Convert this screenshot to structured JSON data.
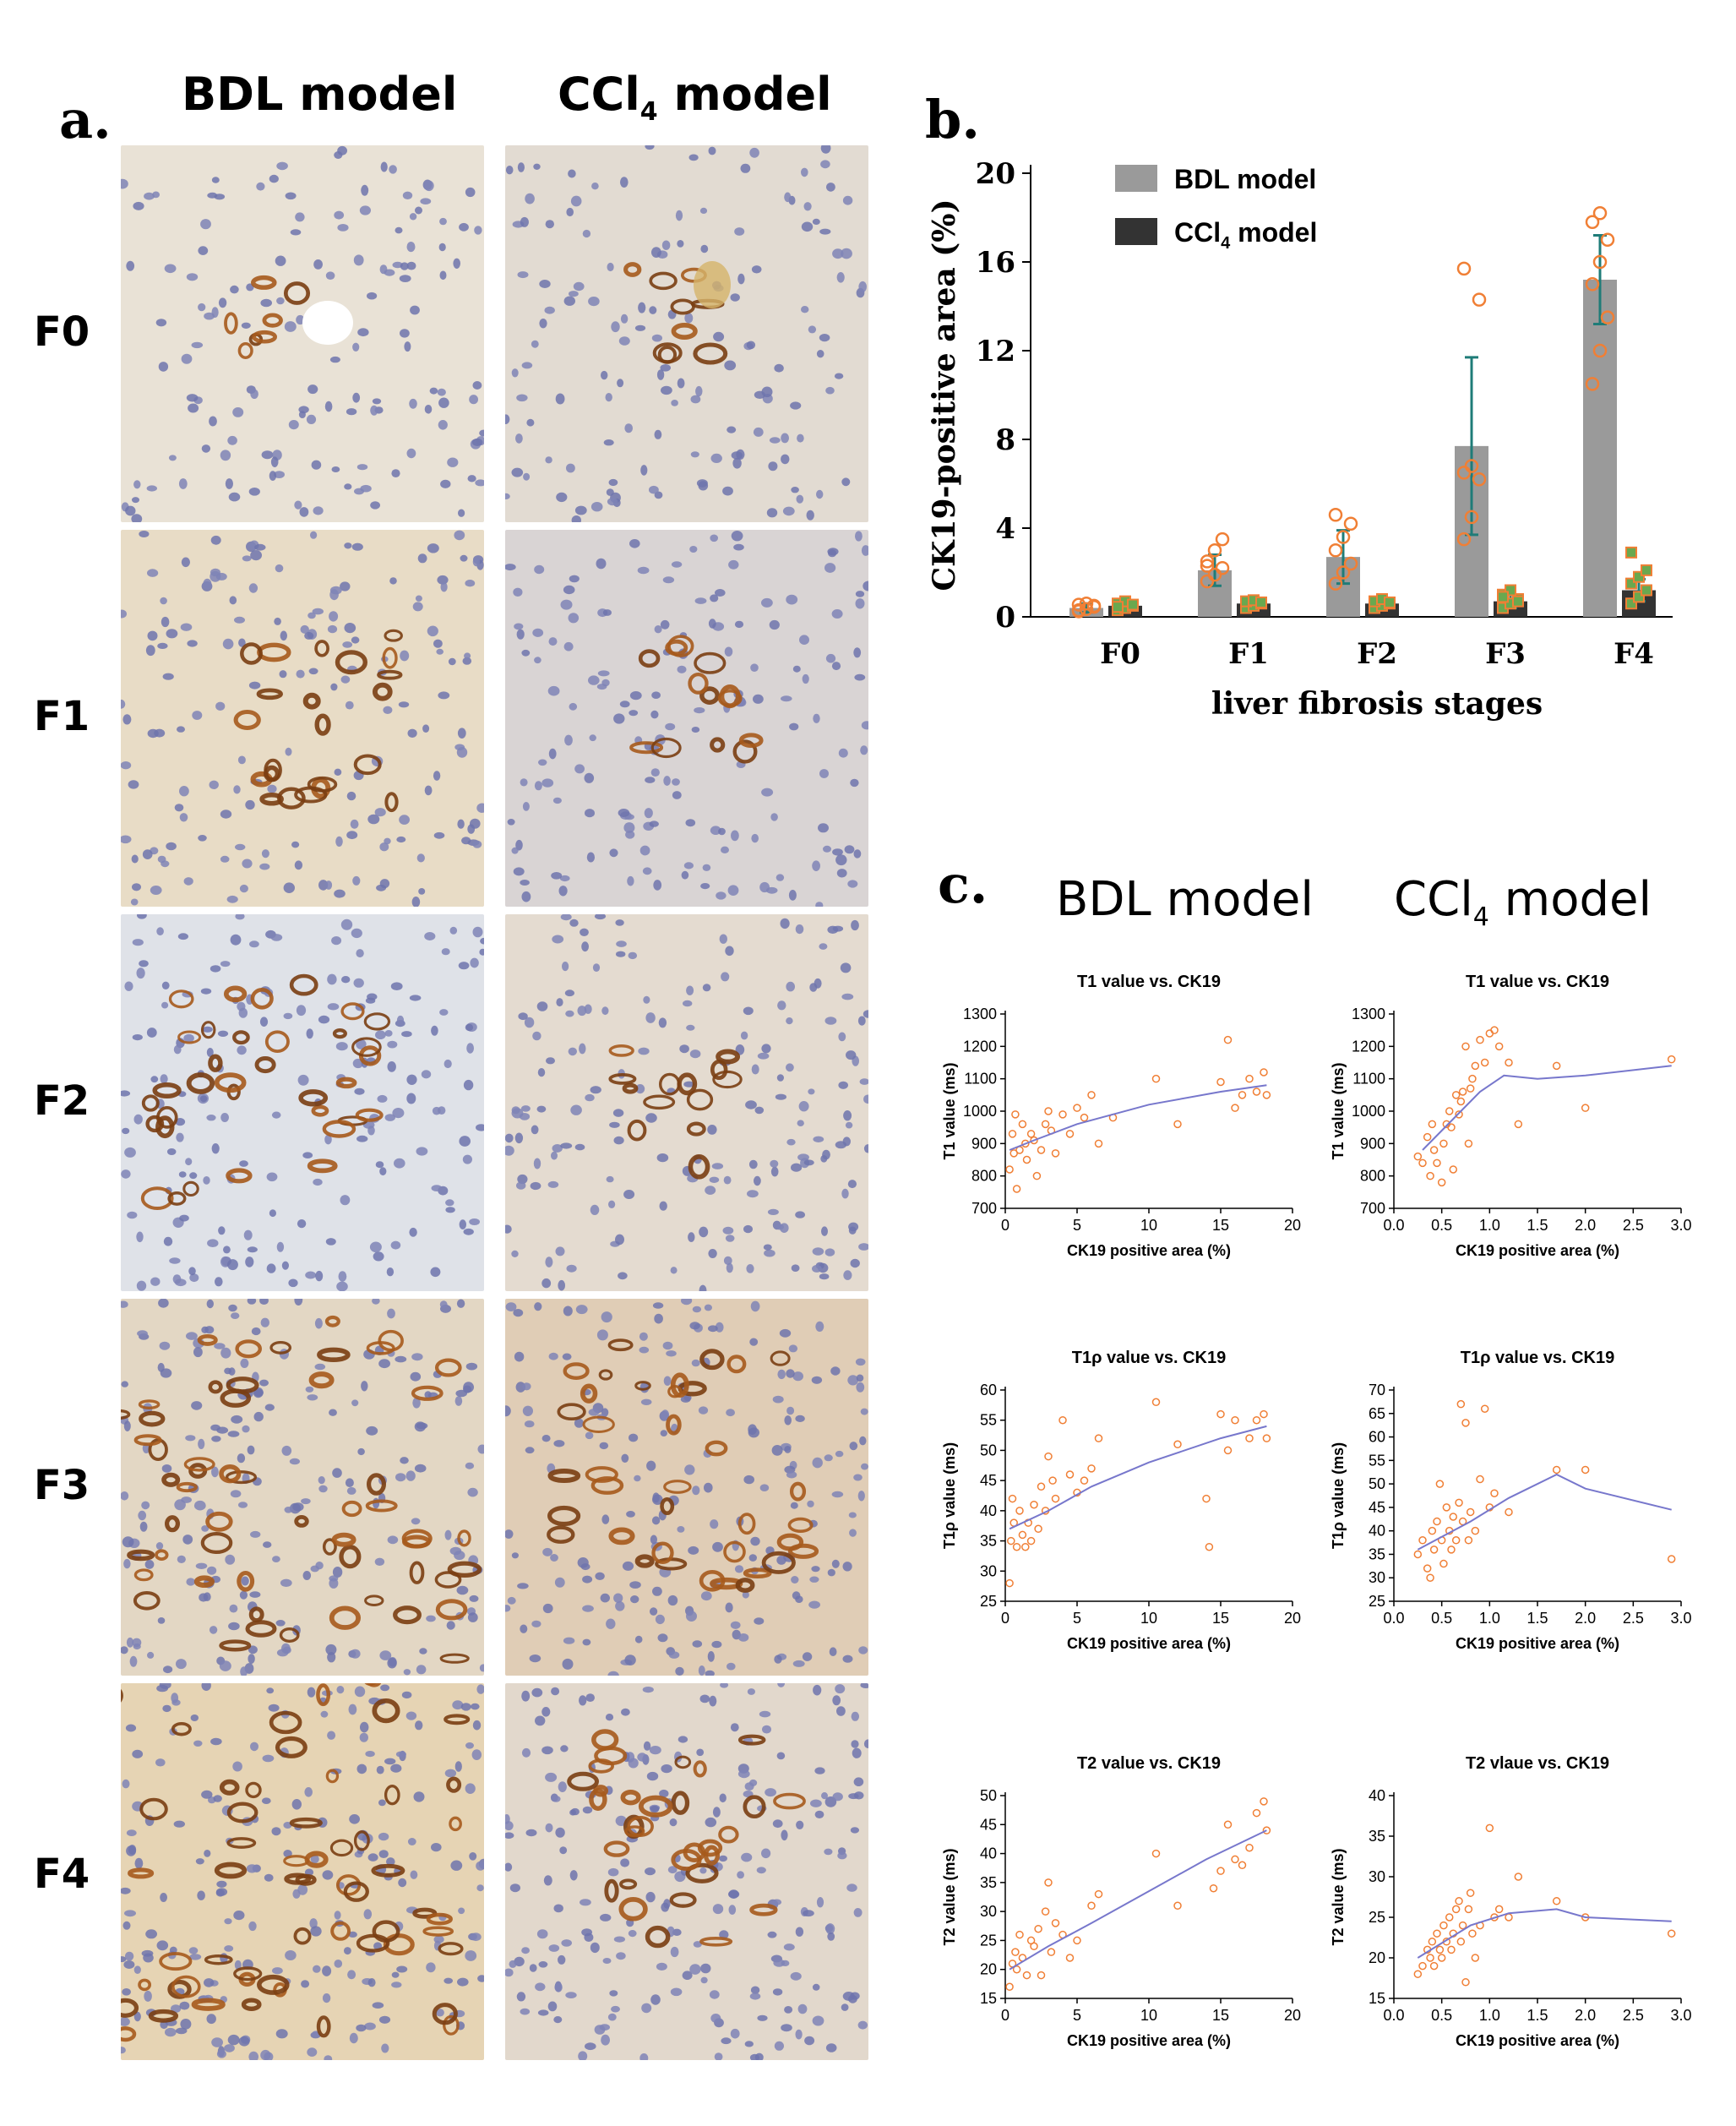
{
  "panel_a": {
    "letter": "a.",
    "columns": [
      "BDL model",
      "CCl4 model"
    ],
    "columns_display": [
      "BDL model",
      "CCl",
      "4",
      " model"
    ],
    "rows": [
      "F0",
      "F1",
      "F2",
      "F3",
      "F4"
    ]
  },
  "panel_b": {
    "letter": "b."
  },
  "panel_c": {
    "letter": "c.",
    "col_bdl": "BDL model",
    "col_ccl4_main": "CCl",
    "col_ccl4_sub": "4",
    "col_ccl4_tail": " model"
  },
  "colors": {
    "bdl_bar": "#9a9a9a",
    "ccl4_bar": "#333333",
    "point_orange": "#f07f35",
    "error_teal": "#1f7c78",
    "fit_line": "#7777cc",
    "ccl4_point_fill": "#6aa84f"
  },
  "chart_data": [
    {
      "id": "b",
      "type": "bar",
      "title": "",
      "xlabel": "liver fibrosis stages",
      "ylabel": "CK19-positive area (%)",
      "ylim": [
        0,
        20
      ],
      "yticks": [
        0,
        4,
        8,
        12,
        16,
        20
      ],
      "categories": [
        "F0",
        "F1",
        "F2",
        "F3",
        "F4"
      ],
      "legend_position": "top-left",
      "series": [
        {
          "name": "BDL model",
          "values": [
            0.4,
            2.1,
            2.7,
            7.7,
            15.2
          ],
          "errors": [
            0.2,
            0.7,
            1.2,
            4.0,
            2.0
          ]
        },
        {
          "name": "CCl4 model",
          "legend_main": "CCl",
          "legend_sub": "4",
          "legend_tail": " model",
          "values": [
            0.5,
            0.6,
            0.6,
            0.7,
            1.2
          ],
          "errors": [
            0.1,
            0.1,
            0.1,
            0.3,
            0.5
          ]
        }
      ],
      "points": {
        "BDL model": [
          [
            0.25,
            0.35,
            0.5,
            0.55,
            0.6,
            0.45,
            0.3
          ],
          [
            1.6,
            1.9,
            2.2,
            2.5,
            3.0,
            3.5,
            2.3
          ],
          [
            1.5,
            2.0,
            2.4,
            3.0,
            3.6,
            4.2,
            4.6
          ],
          [
            3.5,
            4.5,
            6.2,
            6.5,
            6.8,
            14.3,
            15.7
          ],
          [
            10.5,
            12.0,
            13.5,
            15.0,
            16.0,
            17.0,
            17.8,
            18.2
          ]
        ],
        "CCl4 model": [
          [
            0.3,
            0.4,
            0.5,
            0.6,
            0.7,
            0.55,
            0.45
          ],
          [
            0.4,
            0.5,
            0.6,
            0.7,
            0.75,
            0.65
          ],
          [
            0.4,
            0.5,
            0.6,
            0.7,
            0.8,
            0.65
          ],
          [
            0.4,
            0.6,
            0.8,
            1.0,
            1.2,
            0.7,
            0.9
          ],
          [
            0.6,
            0.9,
            1.2,
            1.5,
            1.8,
            2.1,
            2.9
          ]
        ]
      }
    },
    {
      "id": "c1",
      "type": "scatter",
      "title": "T1 value vs. CK19",
      "xlabel": "CK19 positive area (%)",
      "ylabel": "T1 value (ms)",
      "xlim": [
        0,
        20
      ],
      "xticks": [
        0,
        5,
        10,
        15,
        20
      ],
      "ylim": [
        700,
        1300
      ],
      "yticks": [
        700,
        800,
        900,
        1000,
        1100,
        1200,
        1300
      ],
      "points": [
        [
          0.3,
          820
        ],
        [
          0.5,
          930
        ],
        [
          0.6,
          870
        ],
        [
          0.7,
          990
        ],
        [
          0.8,
          760
        ],
        [
          1.0,
          880
        ],
        [
          1.2,
          960
        ],
        [
          1.4,
          900
        ],
        [
          1.5,
          850
        ],
        [
          1.8,
          930
        ],
        [
          2.0,
          910
        ],
        [
          2.2,
          800
        ],
        [
          2.5,
          880
        ],
        [
          2.8,
          960
        ],
        [
          3.0,
          1000
        ],
        [
          3.2,
          940
        ],
        [
          3.5,
          870
        ],
        [
          4.0,
          990
        ],
        [
          4.5,
          930
        ],
        [
          5.0,
          1010
        ],
        [
          5.5,
          980
        ],
        [
          6.0,
          1050
        ],
        [
          6.5,
          900
        ],
        [
          7.5,
          980
        ],
        [
          10.5,
          1100
        ],
        [
          12.0,
          960
        ],
        [
          15.0,
          1090
        ],
        [
          15.5,
          1220
        ],
        [
          16.0,
          1010
        ],
        [
          16.5,
          1050
        ],
        [
          17.0,
          1100
        ],
        [
          17.5,
          1060
        ],
        [
          18.0,
          1120
        ],
        [
          18.2,
          1050
        ]
      ],
      "fit": [
        [
          0.3,
          880
        ],
        [
          2,
          910
        ],
        [
          5,
          960
        ],
        [
          10,
          1020
        ],
        [
          15,
          1060
        ],
        [
          18.2,
          1080
        ]
      ]
    },
    {
      "id": "c2",
      "type": "scatter",
      "title": "T1 value vs. CK19",
      "xlabel": "CK19 positive area (%)",
      "ylabel": "T1 value (ms)",
      "xlim": [
        0,
        3
      ],
      "xticks": [
        0.0,
        0.5,
        1.0,
        1.5,
        2.0,
        2.5,
        3.0
      ],
      "ylim": [
        700,
        1300
      ],
      "yticks": [
        700,
        800,
        900,
        1000,
        1100,
        1200,
        1300
      ],
      "points": [
        [
          0.25,
          860
        ],
        [
          0.3,
          840
        ],
        [
          0.35,
          920
        ],
        [
          0.38,
          800
        ],
        [
          0.4,
          960
        ],
        [
          0.42,
          880
        ],
        [
          0.45,
          840
        ],
        [
          0.5,
          780
        ],
        [
          0.52,
          900
        ],
        [
          0.55,
          960
        ],
        [
          0.58,
          1000
        ],
        [
          0.6,
          950
        ],
        [
          0.62,
          820
        ],
        [
          0.65,
          1050
        ],
        [
          0.68,
          990
        ],
        [
          0.7,
          1030
        ],
        [
          0.72,
          1060
        ],
        [
          0.75,
          1200
        ],
        [
          0.78,
          900
        ],
        [
          0.8,
          1070
        ],
        [
          0.82,
          1100
        ],
        [
          0.85,
          1140
        ],
        [
          0.9,
          1220
        ],
        [
          0.95,
          1150
        ],
        [
          1.0,
          1240
        ],
        [
          1.05,
          1250
        ],
        [
          1.1,
          1200
        ],
        [
          1.2,
          1150
        ],
        [
          1.3,
          960
        ],
        [
          1.7,
          1140
        ],
        [
          2.0,
          1010
        ],
        [
          2.9,
          1160
        ]
      ],
      "fit": [
        [
          0.3,
          880
        ],
        [
          0.6,
          970
        ],
        [
          0.9,
          1060
        ],
        [
          1.15,
          1110
        ],
        [
          1.5,
          1100
        ],
        [
          2.0,
          1110
        ],
        [
          2.9,
          1140
        ]
      ]
    },
    {
      "id": "c3",
      "type": "scatter",
      "title": "T1ρ value vs. CK19",
      "xlabel": "CK19 positive area (%)",
      "ylabel": "T1ρ value (ms)",
      "xlim": [
        0,
        20
      ],
      "xticks": [
        0,
        5,
        10,
        15,
        20
      ],
      "ylim": [
        25,
        60
      ],
      "yticks": [
        25,
        30,
        35,
        40,
        45,
        50,
        55,
        60
      ],
      "points": [
        [
          0.3,
          28
        ],
        [
          0.4,
          35
        ],
        [
          0.5,
          42
        ],
        [
          0.6,
          38
        ],
        [
          0.8,
          34
        ],
        [
          1.0,
          40
        ],
        [
          1.2,
          36
        ],
        [
          1.4,
          34
        ],
        [
          1.6,
          38
        ],
        [
          1.8,
          35
        ],
        [
          2.0,
          41
        ],
        [
          2.3,
          37
        ],
        [
          2.5,
          44
        ],
        [
          2.8,
          40
        ],
        [
          3.0,
          49
        ],
        [
          3.3,
          45
        ],
        [
          3.5,
          42
        ],
        [
          4.0,
          55
        ],
        [
          4.5,
          46
        ],
        [
          5.0,
          43
        ],
        [
          5.5,
          45
        ],
        [
          6.0,
          47
        ],
        [
          6.5,
          52
        ],
        [
          10.5,
          58
        ],
        [
          12.0,
          51
        ],
        [
          14.0,
          42
        ],
        [
          14.2,
          34
        ],
        [
          15.0,
          56
        ],
        [
          15.5,
          50
        ],
        [
          16.0,
          55
        ],
        [
          17.0,
          52
        ],
        [
          17.5,
          55
        ],
        [
          18.0,
          56
        ],
        [
          18.2,
          52
        ]
      ],
      "fit": [
        [
          0.3,
          37
        ],
        [
          3,
          40
        ],
        [
          6,
          44
        ],
        [
          10,
          48
        ],
        [
          15,
          52
        ],
        [
          18.2,
          54
        ]
      ]
    },
    {
      "id": "c4",
      "type": "scatter",
      "title": "T1ρ value vs. CK19",
      "xlabel": "CK19 positive area (%)",
      "ylabel": "T1ρ value (ms)",
      "xlim": [
        0,
        3
      ],
      "xticks": [
        0.0,
        0.5,
        1.0,
        1.5,
        2.0,
        2.5,
        3.0
      ],
      "ylim": [
        25,
        70
      ],
      "yticks": [
        25,
        30,
        35,
        40,
        45,
        50,
        55,
        60,
        65,
        70
      ],
      "points": [
        [
          0.25,
          35
        ],
        [
          0.3,
          38
        ],
        [
          0.35,
          32
        ],
        [
          0.38,
          30
        ],
        [
          0.4,
          40
        ],
        [
          0.42,
          36
        ],
        [
          0.45,
          42
        ],
        [
          0.48,
          50
        ],
        [
          0.5,
          38
        ],
        [
          0.52,
          33
        ],
        [
          0.55,
          45
        ],
        [
          0.58,
          40
        ],
        [
          0.6,
          36
        ],
        [
          0.62,
          43
        ],
        [
          0.65,
          38
        ],
        [
          0.68,
          46
        ],
        [
          0.7,
          67
        ],
        [
          0.72,
          42
        ],
        [
          0.75,
          63
        ],
        [
          0.78,
          38
        ],
        [
          0.8,
          44
        ],
        [
          0.85,
          40
        ],
        [
          0.9,
          51
        ],
        [
          0.95,
          66
        ],
        [
          1.0,
          45
        ],
        [
          1.05,
          48
        ],
        [
          1.2,
          44
        ],
        [
          1.7,
          53
        ],
        [
          2.0,
          53
        ],
        [
          2.9,
          34
        ]
      ],
      "fit": [
        [
          0.25,
          36
        ],
        [
          0.8,
          42
        ],
        [
          1.2,
          47
        ],
        [
          1.7,
          52
        ],
        [
          2.0,
          49
        ],
        [
          2.9,
          44.5
        ]
      ]
    },
    {
      "id": "c5",
      "type": "scatter",
      "title": "T2 value vs. CK19",
      "xlabel": "CK19 positive area (%)",
      "ylabel": "T2 value (ms)",
      "xlim": [
        0,
        20
      ],
      "xticks": [
        0,
        5,
        10,
        15,
        20
      ],
      "ylim": [
        15,
        50
      ],
      "yticks": [
        15,
        20,
        25,
        30,
        35,
        40,
        45,
        50
      ],
      "points": [
        [
          0.3,
          17
        ],
        [
          0.5,
          21
        ],
        [
          0.7,
          23
        ],
        [
          0.8,
          20
        ],
        [
          1.0,
          26
        ],
        [
          1.2,
          22
        ],
        [
          1.5,
          19
        ],
        [
          1.8,
          25
        ],
        [
          2.0,
          24
        ],
        [
          2.3,
          27
        ],
        [
          2.5,
          19
        ],
        [
          2.8,
          30
        ],
        [
          3.0,
          35
        ],
        [
          3.2,
          23
        ],
        [
          3.5,
          28
        ],
        [
          4.0,
          26
        ],
        [
          4.5,
          22
        ],
        [
          5.0,
          25
        ],
        [
          6.0,
          31
        ],
        [
          6.5,
          33
        ],
        [
          10.5,
          40
        ],
        [
          12.0,
          31
        ],
        [
          14.5,
          34
        ],
        [
          15.0,
          37
        ],
        [
          15.5,
          45
        ],
        [
          16.0,
          39
        ],
        [
          16.5,
          38
        ],
        [
          17.0,
          41
        ],
        [
          17.5,
          47
        ],
        [
          18.0,
          49
        ],
        [
          18.2,
          44
        ]
      ],
      "fit": [
        [
          0.3,
          20
        ],
        [
          3,
          24
        ],
        [
          6,
          28
        ],
        [
          10,
          33.5
        ],
        [
          14,
          39
        ],
        [
          18.2,
          44
        ]
      ]
    },
    {
      "id": "c6",
      "type": "scatter",
      "title": "T2 vlaue vs. CK19",
      "xlabel": "CK19 positive area (%)",
      "ylabel": "T2 value (ms)",
      "xlim": [
        0,
        3
      ],
      "xticks": [
        0.0,
        0.5,
        1.0,
        1.5,
        2.0,
        2.5,
        3.0
      ],
      "ylim": [
        15,
        40
      ],
      "yticks": [
        15,
        20,
        25,
        30,
        35,
        40
      ],
      "points": [
        [
          0.25,
          18
        ],
        [
          0.3,
          19
        ],
        [
          0.35,
          21
        ],
        [
          0.38,
          20
        ],
        [
          0.4,
          22
        ],
        [
          0.42,
          19
        ],
        [
          0.45,
          23
        ],
        [
          0.48,
          21
        ],
        [
          0.5,
          20
        ],
        [
          0.52,
          24
        ],
        [
          0.55,
          22
        ],
        [
          0.58,
          25
        ],
        [
          0.6,
          21
        ],
        [
          0.62,
          23
        ],
        [
          0.65,
          26
        ],
        [
          0.68,
          27
        ],
        [
          0.7,
          22
        ],
        [
          0.72,
          24
        ],
        [
          0.75,
          17
        ],
        [
          0.78,
          26
        ],
        [
          0.8,
          28
        ],
        [
          0.82,
          23
        ],
        [
          0.85,
          20
        ],
        [
          0.9,
          24
        ],
        [
          1.0,
          36
        ],
        [
          1.05,
          25
        ],
        [
          1.1,
          26
        ],
        [
          1.2,
          25
        ],
        [
          1.3,
          30
        ],
        [
          1.7,
          27
        ],
        [
          2.0,
          25
        ],
        [
          2.9,
          23
        ]
      ],
      "fit": [
        [
          0.25,
          20
        ],
        [
          0.8,
          24
        ],
        [
          1.2,
          25.5
        ],
        [
          1.7,
          26
        ],
        [
          2.0,
          25
        ],
        [
          2.9,
          24.5
        ]
      ]
    }
  ]
}
